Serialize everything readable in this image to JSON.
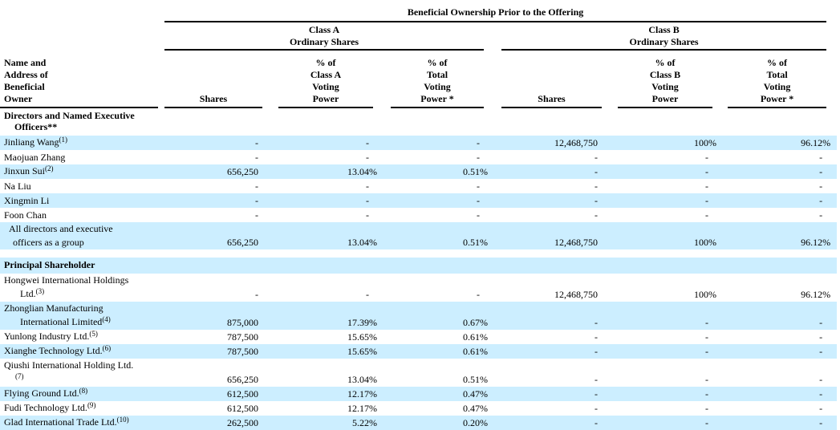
{
  "table": {
    "title": "Beneficial Ownership Prior to the Offering",
    "group_headers": {
      "class_a": [
        "Class A",
        "Ordinary Shares"
      ],
      "class_b": [
        "Class B",
        "Ordinary Shares"
      ]
    },
    "columns": {
      "name": [
        "Name and",
        "Address of",
        "Beneficial",
        "Owner"
      ],
      "shares_a": "Shares",
      "pct_class_a": [
        "% of",
        "Class A",
        "Voting",
        "Power"
      ],
      "pct_total_a": [
        "% of",
        "Total",
        "Voting",
        "Power *"
      ],
      "shares_b": "Shares",
      "pct_class_b": [
        "% of",
        "Class B",
        "Voting",
        "Power"
      ],
      "pct_total_b": [
        "% of",
        "Total",
        "Voting",
        "Power *"
      ],
      "value_order": [
        "shares_a",
        "pct_class_a",
        "pct_total_a",
        "shares_b",
        "pct_class_b",
        "pct_total_b"
      ]
    },
    "rows": [
      {
        "type": "section",
        "highlight": false,
        "lines": [
          {
            "text": "Directors and Named Executive",
            "sup": "",
            "indent": 0
          },
          {
            "text": "Officers**",
            "sup": "",
            "indent": 13
          }
        ],
        "values": [
          "",
          "",
          "",
          "",
          "",
          ""
        ]
      },
      {
        "type": "data",
        "highlight": true,
        "lines": [
          {
            "text": "Jinliang Wang",
            "sup": "(1)",
            "indent": 0
          }
        ],
        "values": [
          "-",
          "-",
          "-",
          "12,468,750",
          "100%",
          "96.12%"
        ]
      },
      {
        "type": "data",
        "highlight": false,
        "lines": [
          {
            "text": "Maojuan Zhang",
            "sup": "",
            "indent": 0
          }
        ],
        "values": [
          "-",
          "-",
          "-",
          "-",
          "-",
          "-"
        ]
      },
      {
        "type": "data",
        "highlight": true,
        "lines": [
          {
            "text": "Jinxun Sui",
            "sup": "(2)",
            "indent": 0
          }
        ],
        "values": [
          "656,250",
          "13.04%",
          "0.51%",
          "-",
          "-",
          "-"
        ]
      },
      {
        "type": "data",
        "highlight": false,
        "lines": [
          {
            "text": "Na Liu",
            "sup": "",
            "indent": 0
          }
        ],
        "values": [
          "-",
          "-",
          "-",
          "-",
          "-",
          "-"
        ]
      },
      {
        "type": "data",
        "highlight": true,
        "lines": [
          {
            "text": "Xingmin Li",
            "sup": "",
            "indent": 0
          }
        ],
        "values": [
          "-",
          "-",
          "-",
          "-",
          "-",
          "-"
        ]
      },
      {
        "type": "data",
        "highlight": false,
        "lines": [
          {
            "text": "Foon Chan",
            "sup": "",
            "indent": 0
          }
        ],
        "values": [
          "-",
          "-",
          "-",
          "-",
          "-",
          "-"
        ]
      },
      {
        "type": "data",
        "highlight": true,
        "lines": [
          {
            "text": "All directors and executive",
            "sup": "",
            "indent": 6
          },
          {
            "text": "officers as a group",
            "sup": "",
            "indent": 11
          }
        ],
        "values": [
          "656,250",
          "13.04%",
          "0.51%",
          "12,468,750",
          "100%",
          "96.12%"
        ]
      },
      {
        "type": "spacer",
        "highlight": false,
        "lines": [],
        "values": []
      },
      {
        "type": "section",
        "highlight": true,
        "lines": [
          {
            "text": "Principal Shareholder",
            "sup": "",
            "indent": 0
          }
        ],
        "values": [
          "",
          "",
          "",
          "",
          "",
          ""
        ]
      },
      {
        "type": "data",
        "highlight": false,
        "lines": [
          {
            "text": "Hongwei International Holdings",
            "sup": "",
            "indent": 0
          },
          {
            "text": "Ltd.",
            "sup": "(3)",
            "indent": 20
          }
        ],
        "values": [
          "-",
          "-",
          "-",
          "12,468,750",
          "100%",
          "96.12%"
        ]
      },
      {
        "type": "data",
        "highlight": true,
        "lines": [
          {
            "text": "Zhonglian Manufacturing",
            "sup": "",
            "indent": 0
          },
          {
            "text": "International Limited",
            "sup": "(4)",
            "indent": 20
          }
        ],
        "values": [
          "875,000",
          "17.39%",
          "0.67%",
          "-",
          "-",
          "-"
        ]
      },
      {
        "type": "data",
        "highlight": false,
        "lines": [
          {
            "text": "Yunlong Industry Ltd.",
            "sup": "(5)",
            "indent": 0
          }
        ],
        "values": [
          "787,500",
          "15.65%",
          "0.61%",
          "-",
          "-",
          "-"
        ]
      },
      {
        "type": "data",
        "highlight": true,
        "lines": [
          {
            "text": "Xianghe Technology Ltd.",
            "sup": "(6)",
            "indent": 0
          }
        ],
        "values": [
          "787,500",
          "15.65%",
          "0.61%",
          "-",
          "-",
          "-"
        ]
      },
      {
        "type": "data",
        "highlight": false,
        "lines": [
          {
            "text": "Qiushi International Holding Ltd.",
            "sup": "",
            "indent": 0
          },
          {
            "text": "",
            "sup": "(7)",
            "indent": 14
          }
        ],
        "values": [
          "656,250",
          "13.04%",
          "0.51%",
          "-",
          "-",
          "-"
        ]
      },
      {
        "type": "data",
        "highlight": true,
        "lines": [
          {
            "text": "Flying Ground Ltd.",
            "sup": "(8)",
            "indent": 0
          }
        ],
        "values": [
          "612,500",
          "12.17%",
          "0.47%",
          "-",
          "-",
          "-"
        ]
      },
      {
        "type": "data",
        "highlight": false,
        "lines": [
          {
            "text": "Fudi Technology Ltd.",
            "sup": "(9)",
            "indent": 0
          }
        ],
        "values": [
          "612,500",
          "12.17%",
          "0.47%",
          "-",
          "-",
          "-"
        ]
      },
      {
        "type": "data",
        "highlight": true,
        "lines": [
          {
            "text": "Glad International Trade Ltd.",
            "sup": "(10)",
            "indent": 0
          }
        ],
        "values": [
          "262,500",
          "5.22%",
          "0.20%",
          "-",
          "-",
          "-"
        ]
      }
    ]
  },
  "colors": {
    "highlight_row": "#CCEEFF",
    "text": "#000000",
    "rule": "#000000",
    "background": "#FFFFFF"
  }
}
